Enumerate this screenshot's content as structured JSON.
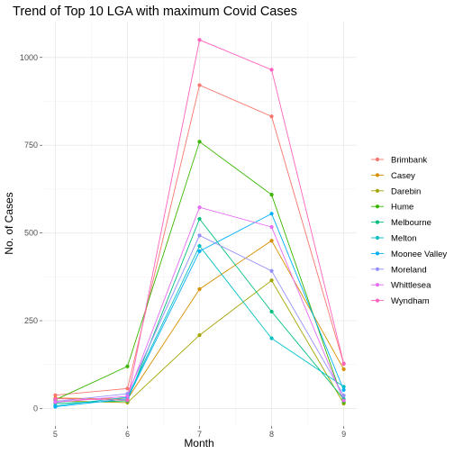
{
  "chart_data": {
    "type": "line",
    "title": "Trend of Top 10 LGA with maximum Covid Cases",
    "xlabel": "Month",
    "ylabel": "No. of Cases",
    "x": [
      5,
      6,
      7,
      8,
      9
    ],
    "xlim": [
      4.82,
      9.18
    ],
    "ylim": [
      -50,
      1102
    ],
    "xticks": [
      5,
      6,
      7,
      8,
      9
    ],
    "yticks": [
      0,
      250,
      500,
      750,
      1000
    ],
    "ytick_labels": [
      "0",
      "250",
      "500",
      "750",
      "1000"
    ],
    "grid": true,
    "legend_position": "right",
    "series": [
      {
        "name": "Brimbank",
        "color": "#F8766D",
        "values": [
          38,
          57,
          921,
          832,
          127
        ]
      },
      {
        "name": "Casey",
        "color": "#D89000",
        "values": [
          30,
          27,
          340,
          478,
          112
        ]
      },
      {
        "name": "Darebin",
        "color": "#A3A500",
        "values": [
          22,
          17,
          209,
          365,
          14
        ]
      },
      {
        "name": "Hume",
        "color": "#39B600",
        "values": [
          25,
          120,
          760,
          609,
          18
        ]
      },
      {
        "name": "Melbourne",
        "color": "#00BF7D",
        "values": [
          15,
          22,
          540,
          276,
          27
        ]
      },
      {
        "name": "Melton",
        "color": "#00BFC4",
        "values": [
          8,
          32,
          463,
          200,
          62
        ]
      },
      {
        "name": "Moonee Valley",
        "color": "#00B0F6",
        "values": [
          5,
          28,
          448,
          555,
          53
        ]
      },
      {
        "name": "Moreland",
        "color": "#9590FF",
        "values": [
          20,
          42,
          493,
          392,
          37
        ]
      },
      {
        "name": "Whittlesea",
        "color": "#E76BF3",
        "values": [
          18,
          35,
          573,
          517,
          23
        ]
      },
      {
        "name": "Wyndham",
        "color": "#FF62BC",
        "values": [
          28,
          24,
          1050,
          965,
          128
        ]
      }
    ]
  }
}
